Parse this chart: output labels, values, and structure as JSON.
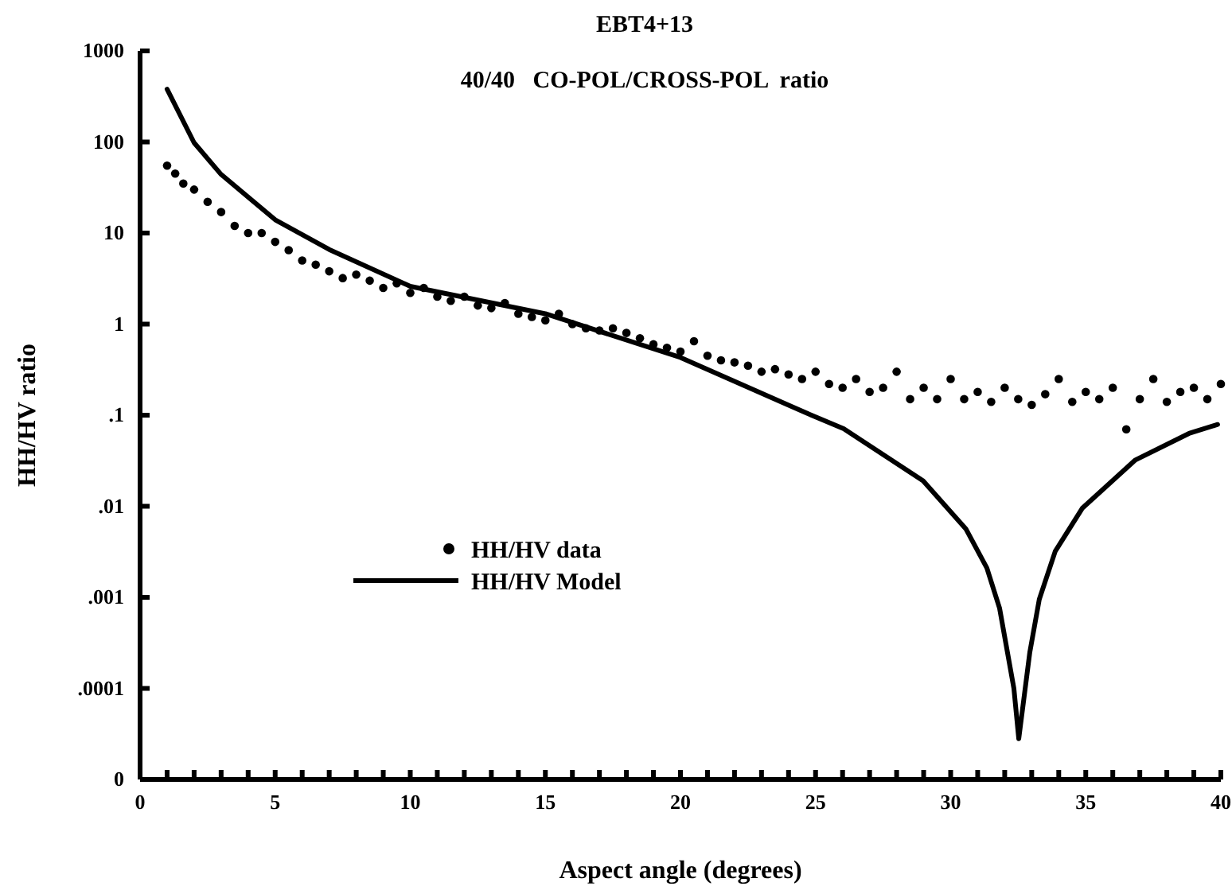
{
  "chart_data": {
    "type": "scatter",
    "title": "EBT4+13",
    "subtitle": "40/40   CO-POL/CROSS-POL  ratio",
    "xlabel": "Aspect  angle  (degrees)",
    "ylabel": "HH/HV ratio",
    "log": "y",
    "xlim": [
      0,
      40
    ],
    "ylim": [
      1e-05,
      1000
    ],
    "xticks": [
      0,
      {
        "value": 1,
        "label": null
      },
      {
        "value": 2,
        "label": null
      },
      {
        "value": 3,
        "label": null
      },
      {
        "value": 4,
        "label": null
      },
      5,
      {
        "value": 6,
        "label": null
      },
      {
        "value": 7,
        "label": null
      },
      {
        "value": 8,
        "label": null
      },
      {
        "value": 9,
        "label": null
      },
      10,
      {
        "value": 11,
        "label": null
      },
      {
        "value": 12,
        "label": null
      },
      {
        "value": 13,
        "label": null
      },
      {
        "value": 14,
        "label": null
      },
      15,
      {
        "value": 16,
        "label": null
      },
      {
        "value": 17,
        "label": null
      },
      {
        "value": 18,
        "label": null
      },
      {
        "value": 19,
        "label": null
      },
      20,
      {
        "value": 21,
        "label": null
      },
      {
        "value": 22,
        "label": null
      },
      {
        "value": 23,
        "label": null
      },
      {
        "value": 24,
        "label": null
      },
      25,
      {
        "value": 26,
        "label": null
      },
      {
        "value": 27,
        "label": null
      },
      {
        "value": 28,
        "label": null
      },
      {
        "value": 29,
        "label": null
      },
      30,
      {
        "value": 31,
        "label": null
      },
      {
        "value": 32,
        "label": null
      },
      {
        "value": 33,
        "label": null
      },
      {
        "value": 34,
        "label": null
      },
      35,
      {
        "value": 36,
        "label": null
      },
      {
        "value": 37,
        "label": null
      },
      {
        "value": 38,
        "label": null
      },
      {
        "value": 39,
        "label": null
      },
      40
    ],
    "yticks": [
      {
        "value": 1e-05,
        "label": "0"
      },
      {
        "value": 0.0001,
        "label": ".0001"
      },
      {
        "value": 0.001,
        "label": ".001"
      },
      {
        "value": 0.01,
        "label": ".01"
      },
      {
        "value": 0.1,
        "label": ".1"
      },
      1,
      10,
      100,
      1000
    ],
    "legend": "left",
    "grid": false,
    "series": [
      {
        "name": "HH/HV data",
        "marker": "circle",
        "color": "#000000",
        "x": [
          1,
          1.3,
          1.6,
          2,
          2.5,
          3,
          3.5,
          4,
          4.5,
          5,
          5.5,
          6,
          6.5,
          7,
          7.5,
          8,
          8.5,
          9,
          9.5,
          10,
          10.5,
          11,
          11.5,
          12,
          12.5,
          13,
          13.5,
          14,
          14.5,
          15,
          15.5,
          16,
          16.5,
          17,
          17.5,
          18,
          18.5,
          19,
          19.5,
          20,
          20.5,
          21,
          21.5,
          22,
          22.5,
          23,
          23.5,
          24,
          24.5,
          25,
          25.5,
          26,
          26.5,
          27,
          27.5,
          28,
          28.5,
          29,
          29.5,
          30,
          30.5,
          31,
          31.5,
          32,
          32.5,
          33,
          33.5,
          34,
          34.5,
          35,
          35.5,
          36,
          36.5,
          37,
          37.5,
          38,
          38.5,
          39,
          39.5,
          40
        ],
        "values": [
          55,
          45,
          35,
          30,
          22,
          17,
          12,
          10,
          10,
          8,
          6.5,
          5,
          4.5,
          3.8,
          3.2,
          3.5,
          3,
          2.5,
          2.8,
          2.2,
          2.5,
          2,
          1.8,
          2,
          1.6,
          1.5,
          1.7,
          1.3,
          1.2,
          1.1,
          1.3,
          1,
          0.9,
          0.85,
          0.9,
          0.8,
          0.7,
          0.6,
          0.55,
          0.5,
          0.65,
          0.45,
          0.4,
          0.38,
          0.35,
          0.3,
          0.32,
          0.28,
          0.25,
          0.3,
          0.22,
          0.2,
          0.25,
          0.18,
          0.2,
          0.3,
          0.15,
          0.2,
          0.15,
          0.25,
          0.15,
          0.18,
          0.14,
          0.2,
          0.15,
          0.13,
          0.17,
          0.25,
          0.14,
          0.18,
          0.15,
          0.2,
          0.07,
          0.15,
          0.25,
          0.14,
          0.18,
          0.2,
          0.15,
          0.22
        ]
      },
      {
        "name": "HH/HV Model",
        "type": "line",
        "marker": "none",
        "line_style": "solid",
        "color": "#000000",
        "x": [
          1,
          2,
          3,
          5,
          7,
          10,
          15,
          20,
          24.68,
          26.04,
          28.98,
          30.57,
          31.34,
          31.81,
          32.34,
          32.52,
          32.93,
          33.28,
          33.87,
          34.87,
          36.82,
          38.82,
          39.88
        ],
        "values": [
          380,
          98,
          44,
          14,
          6.6,
          2.6,
          1.3,
          0.43,
          0.105,
          0.071,
          0.019,
          0.0056,
          0.0021,
          0.00076,
          0.0001,
          2.8e-05,
          0.00025,
          0.00095,
          0.0032,
          0.0095,
          0.032,
          0.063,
          0.079
        ]
      }
    ]
  }
}
